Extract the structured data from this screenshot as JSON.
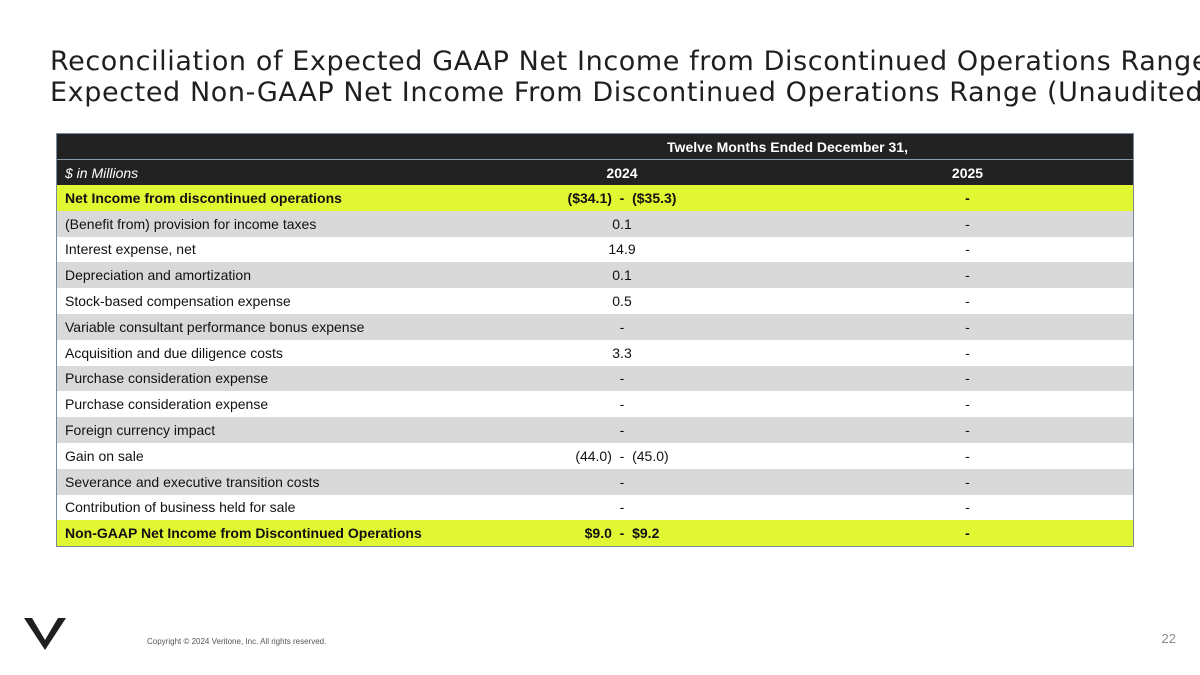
{
  "slide": {
    "title_line1": "Reconciliation of Expected GAAP Net Income from Discontinued Operations Range to",
    "title_line2": "Expected Non-GAAP Net Income From Discontinued Operations Range (Unaudited)",
    "copyright": "Copyright © 2024 Veritone, Inc. All rights reserved.",
    "page_number": "22",
    "logo_icon": "veritone-v-logo-icon"
  },
  "table": {
    "period_header": "Twelve Months Ended December 31,",
    "units_label": "$ in Millions",
    "years": [
      "2024",
      "2025"
    ],
    "rows": [
      {
        "label": "Net Income from discontinued operations",
        "v2024": "($34.1)  -  ($35.3)",
        "v2025": "-"
      },
      {
        "label": "(Benefit from) provision for income taxes",
        "v2024": "0.1",
        "v2025": "-"
      },
      {
        "label": "Interest expense, net",
        "v2024": "14.9",
        "v2025": "-"
      },
      {
        "label": "Depreciation and amortization",
        "v2024": "0.1",
        "v2025": "-"
      },
      {
        "label": "Stock-based compensation expense",
        "v2024": "0.5",
        "v2025": "-"
      },
      {
        "label": "Variable consultant performance bonus expense",
        "v2024": "-",
        "v2025": "-"
      },
      {
        "label": "Acquisition and due diligence costs",
        "v2024": "3.3",
        "v2025": "-"
      },
      {
        "label": "Purchase consideration expense",
        "v2024": "-",
        "v2025": "-"
      },
      {
        "label": "Purchase consideration expense",
        "v2024": "-",
        "v2025": "-"
      },
      {
        "label": "Foreign currency impact",
        "v2024": "-",
        "v2025": "-"
      },
      {
        "label": "Gain on sale",
        "v2024": "(44.0)  -  (45.0)",
        "v2025": "-"
      },
      {
        "label": "Severance and executive transition costs",
        "v2024": "-",
        "v2025": "-"
      },
      {
        "label": "Contribution of business held for sale",
        "v2024": "-",
        "v2025": "-"
      },
      {
        "label": "Non-GAAP Net Income from Discontinued Operations",
        "v2024": "$9.0  -  $9.2",
        "v2025": "-"
      }
    ]
  },
  "colors": {
    "header_bg": "#222222",
    "highlight": "#e2f733",
    "band": "#d9d9d9"
  }
}
